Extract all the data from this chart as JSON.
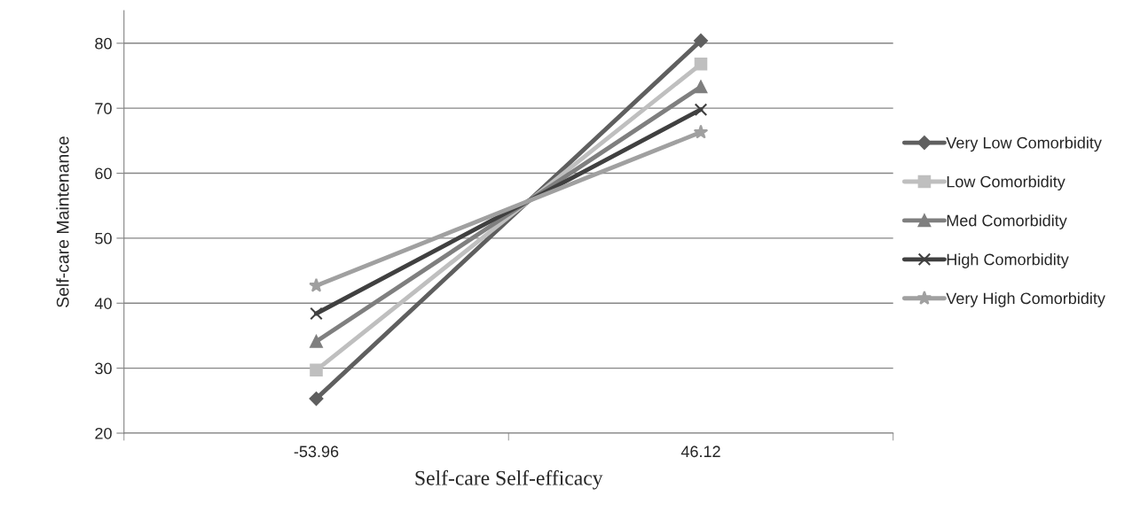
{
  "chart_data": {
    "type": "line",
    "xlabel": "Self-care Self-efficacy",
    "ylabel": "Self-care Maintenance",
    "categories": [
      "-53.96",
      "46.12"
    ],
    "series": [
      {
        "name": "Very Low Comorbidity",
        "color": "#5f5f5f",
        "marker": "diamond",
        "values": [
          25.3,
          80.4
        ]
      },
      {
        "name": "Low Comorbidity",
        "color": "#bfbfbf",
        "marker": "square",
        "values": [
          29.7,
          76.8
        ]
      },
      {
        "name": "Med Comorbidity",
        "color": "#7f7f7f",
        "marker": "triangle",
        "values": [
          34.1,
          73.3
        ]
      },
      {
        "name": "High Comorbidity",
        "color": "#404040",
        "marker": "cross",
        "values": [
          38.4,
          69.8
        ]
      },
      {
        "name": "Very High Comorbidity",
        "color": "#a0a0a0",
        "marker": "star",
        "values": [
          42.7,
          66.3
        ]
      }
    ],
    "ylim": [
      20,
      85
    ],
    "yticks": [
      20,
      30,
      40,
      50,
      60,
      70,
      80
    ],
    "grid": "y",
    "legend": "right",
    "line_style": "solid"
  }
}
